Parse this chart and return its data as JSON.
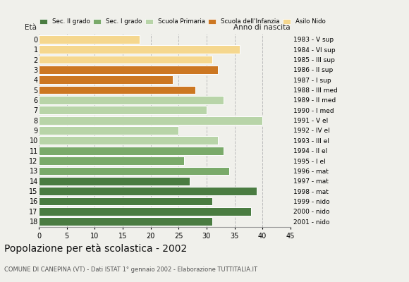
{
  "ages": [
    0,
    1,
    2,
    3,
    4,
    5,
    6,
    7,
    8,
    9,
    10,
    11,
    12,
    13,
    14,
    15,
    16,
    17,
    18
  ],
  "values": [
    18,
    36,
    31,
    32,
    24,
    28,
    33,
    30,
    40,
    25,
    32,
    33,
    26,
    34,
    27,
    39,
    31,
    38,
    31
  ],
  "colors": [
    "#f5d78e",
    "#f5d78e",
    "#f5d78e",
    "#cc7722",
    "#cc7722",
    "#cc7722",
    "#b8d4a8",
    "#b8d4a8",
    "#b8d4a8",
    "#b8d4a8",
    "#b8d4a8",
    "#7aaa6a",
    "#7aaa6a",
    "#7aaa6a",
    "#4a7c41",
    "#4a7c41",
    "#4a7c41",
    "#4a7c41",
    "#4a7c41"
  ],
  "right_labels": [
    "2001 - nido",
    "2000 - nido",
    "1999 - nido",
    "1998 - mat",
    "1997 - mat",
    "1996 - mat",
    "1995 - I el",
    "1994 - II el",
    "1993 - III el",
    "1992 - IV el",
    "1991 - V el",
    "1990 - I med",
    "1989 - II med",
    "1988 - III med",
    "1987 - I sup",
    "1986 - II sup",
    "1985 - III sup",
    "1984 - VI sup",
    "1983 - V sup"
  ],
  "legend_labels": [
    "Sec. II grado",
    "Sec. I grado",
    "Scuola Primaria",
    "Scuola dell'Infanzia",
    "Asilo Nido"
  ],
  "legend_colors": [
    "#4a7c41",
    "#7aaa6a",
    "#b8d4a8",
    "#cc7722",
    "#f5d78e"
  ],
  "title": "Popolazione per età scolastica - 2002",
  "subtitle": "COMUNE DI CANEPINA (VT) - Dati ISTAT 1° gennaio 2002 - Elaborazione TUTTITALIA.IT",
  "xlim": [
    0,
    45
  ],
  "xticks": [
    0,
    5,
    10,
    15,
    20,
    25,
    30,
    35,
    40,
    45
  ],
  "bg_color": "#f0f0eb",
  "bar_edge_color": "white",
  "grid_color": "#bbbbbb"
}
